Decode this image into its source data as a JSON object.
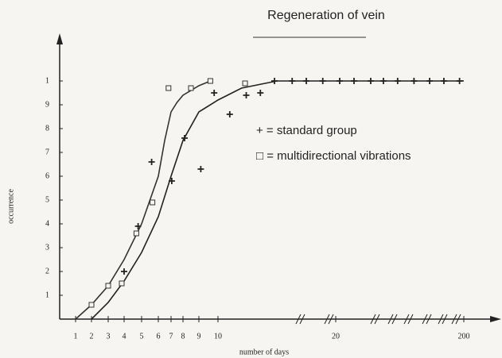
{
  "chart_data": {
    "type": "scatter",
    "title": "Regeneration of vein",
    "x_label": "number of days",
    "y_label": "occurrence",
    "xlim": [
      0,
      200
    ],
    "xticks": [
      1,
      2,
      3,
      4,
      5,
      6,
      7,
      8,
      9,
      10,
      20,
      200
    ],
    "ylim": [
      0,
      1.2
    ],
    "yticks": [
      {
        "value": 0.1,
        "label": "1"
      },
      {
        "value": 0.2,
        "label": "2"
      },
      {
        "value": 0.3,
        "label": "3"
      },
      {
        "value": 0.4,
        "label": "4"
      },
      {
        "value": 0.5,
        "label": "5"
      },
      {
        "value": 0.6,
        "label": "6"
      },
      {
        "value": 0.7,
        "label": "7"
      },
      {
        "value": 0.8,
        "label": "8"
      },
      {
        "value": 0.9,
        "label": "9"
      },
      1
    ],
    "series": [
      {
        "name": "+ = standard group",
        "marker": "plus",
        "color": "#222222",
        "x": [
          4,
          4.8,
          5.6,
          7.06,
          8.1,
          9.1,
          9.8,
          11,
          12.4,
          13.6,
          14.8,
          16.3,
          17.5,
          18.9,
          25.6,
          45.7,
          69.2,
          87,
          107,
          130,
          152,
          172,
          194
        ],
        "values": [
          0.2,
          0.39,
          0.66,
          0.58,
          0.76,
          0.63,
          0.95,
          0.86,
          0.94,
          0.95,
          1,
          1,
          1,
          1,
          1,
          1,
          1,
          1,
          1,
          1,
          1,
          1,
          1
        ],
        "fit": {
          "x": [
            2,
            3,
            4,
            5,
            6,
            7,
            8,
            9,
            10,
            12,
            14,
            15,
            20,
            200
          ],
          "values": [
            0,
            0.07,
            0.16,
            0.28,
            0.43,
            0.6,
            0.75,
            0.87,
            0.92,
            0.97,
            0.99,
            1,
            1,
            1
          ]
        }
      },
      {
        "name": "□ = multidirectional vibrations",
        "marker": "square",
        "color": "#333333",
        "x": [
          2,
          3,
          3.85,
          4.7,
          5.65,
          6.8,
          8.5,
          9.6,
          12.3
        ],
        "values": [
          0.06,
          0.14,
          0.15,
          0.36,
          0.49,
          0.97,
          0.97,
          1,
          0.99
        ],
        "fit": {
          "x": [
            1,
            2,
            3,
            4,
            5,
            6,
            6.5,
            7,
            7.5,
            8,
            9,
            9.6
          ],
          "values": [
            0,
            0.06,
            0.14,
            0.25,
            0.4,
            0.6,
            0.75,
            0.87,
            0.91,
            0.94,
            0.98,
            1
          ]
        }
      }
    ]
  }
}
